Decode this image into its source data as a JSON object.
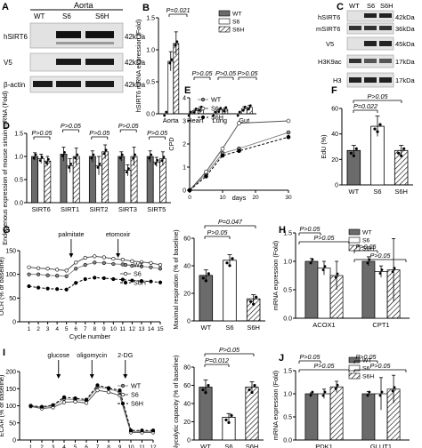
{
  "panels": {
    "A": {
      "letter": "A",
      "header": "Aorta",
      "lanes": [
        "WT",
        "S6",
        "S6H"
      ],
      "blots": [
        {
          "label": "hSIRT6",
          "kda": "42kDa"
        },
        {
          "label": "V5",
          "kda": "42kDa"
        },
        {
          "label": "β-actin",
          "kda": "42kDa"
        }
      ]
    },
    "C": {
      "letter": "C",
      "lanes": [
        "WT",
        "S6",
        "S6H"
      ],
      "blots": [
        {
          "label": "hSIRT6",
          "kda": "42kDa"
        },
        {
          "label": "mSIRT6",
          "kda": "36kDa"
        },
        {
          "label": "V5",
          "kda": "45kDa"
        },
        {
          "label": "H3K9ac",
          "kda": "17kDa"
        },
        {
          "label": "H3",
          "kda": "17kDa"
        }
      ]
    }
  },
  "colors": {
    "wt": "#6b6b6b",
    "s6": "#ffffff",
    "s6h": "#ffffff",
    "point": "#000000"
  },
  "chart_data": [
    {
      "id": "B",
      "letter": "B",
      "type": "bar",
      "ylabel": "hSIRT6 mRNA expression (Fold)",
      "ylim": [
        0,
        1.5
      ],
      "yticks": [
        0.0,
        0.5,
        1.0,
        1.5
      ],
      "categories": [
        "Aorta",
        "Heart",
        "Lung",
        "Gut"
      ],
      "series": [
        {
          "name": "WT",
          "values": [
            0.0,
            0.0,
            0.0,
            0.0
          ],
          "errors": [
            0,
            0,
            0,
            0
          ]
        },
        {
          "name": "S6",
          "values": [
            0.82,
            0.05,
            0.06,
            0.08
          ],
          "errors": [
            0.15,
            0.02,
            0.02,
            0.03
          ]
        },
        {
          "name": "S6H",
          "values": [
            1.1,
            0.08,
            0.07,
            0.1
          ],
          "errors": [
            0.18,
            0.03,
            0.02,
            0.03
          ]
        }
      ],
      "annotations": [
        "P=0.021",
        "P>0.05",
        "P>0.05",
        "P>0.05"
      ],
      "legend": "top-right"
    },
    {
      "id": "D",
      "letter": "D",
      "type": "bar",
      "ylabel": "Endogenous expression of mouse sirtuin mRNA (Fold)",
      "ylim": [
        0,
        1.5
      ],
      "yticks": [
        0.0,
        0.5,
        1.0,
        1.5
      ],
      "categories": [
        "SIRT6",
        "SIRT1",
        "SIRT2",
        "SIRT3",
        "SIRT5"
      ],
      "series": [
        {
          "name": "WT",
          "values": [
            1.0,
            1.05,
            1.0,
            1.0,
            1.0
          ],
          "errors": [
            0.08,
            0.15,
            0.12,
            0.1,
            0.12
          ]
        },
        {
          "name": "S6",
          "values": [
            0.95,
            0.8,
            0.8,
            0.7,
            0.88
          ],
          "errors": [
            0.1,
            0.15,
            0.2,
            0.12,
            0.1
          ]
        },
        {
          "name": "S6H",
          "values": [
            0.9,
            1.0,
            1.1,
            1.0,
            0.95
          ],
          "errors": [
            0.1,
            0.18,
            0.15,
            0.2,
            0.15
          ]
        }
      ],
      "annotations": [
        "P>0.05",
        "P>0.05",
        "P>0.05",
        "P>0.05",
        "P>0.05"
      ]
    },
    {
      "id": "E",
      "letter": "E",
      "type": "line",
      "ylabel": "CPD",
      "xlabel": "days",
      "xlim": [
        0,
        30
      ],
      "ylim": [
        0,
        4
      ],
      "xticks": [
        0,
        10,
        20,
        30
      ],
      "yticks": [
        0,
        1,
        2,
        3,
        4
      ],
      "series": [
        {
          "name": "WT",
          "x": [
            0,
            5,
            10,
            15,
            30
          ],
          "y": [
            0,
            0.7,
            1.6,
            1.8,
            2.5
          ]
        },
        {
          "name": "S6",
          "x": [
            0,
            5,
            10,
            15,
            30
          ],
          "y": [
            0,
            0.8,
            1.8,
            2.9,
            3.0
          ]
        },
        {
          "name": "S6H",
          "x": [
            0,
            5,
            10,
            15,
            30
          ],
          "y": [
            0,
            0.6,
            1.5,
            1.7,
            2.3
          ]
        }
      ],
      "legend": "top-left"
    },
    {
      "id": "F",
      "letter": "F",
      "type": "bar",
      "ylabel": "EdU (%)",
      "ylim": [
        0,
        60
      ],
      "yticks": [
        0,
        20,
        40,
        60
      ],
      "categories": [
        "WT",
        "S6",
        "S6H"
      ],
      "values": [
        27,
        46,
        27
      ],
      "errors": [
        4,
        8,
        4
      ],
      "annotations": [
        "P>0.05",
        "P=0.022"
      ]
    },
    {
      "id": "G",
      "letter": "G",
      "type": "line",
      "ylabel": "OCR (% of baseline)",
      "xlabel": "Cycle number",
      "xlim": [
        0,
        15
      ],
      "ylim": [
        0,
        150
      ],
      "xticks": [
        1,
        2,
        3,
        4,
        5,
        6,
        7,
        8,
        9,
        10,
        11,
        12,
        13,
        14,
        15
      ],
      "yticks": [
        0,
        50,
        100,
        150
      ],
      "series": [
        {
          "name": "WT",
          "x": [
            1,
            2,
            3,
            4,
            5,
            6,
            7,
            8,
            9,
            10,
            11,
            12,
            13,
            14,
            15
          ],
          "y": [
            100,
            100,
            98,
            97,
            96,
            112,
            120,
            125,
            124,
            122,
            121,
            118,
            117,
            115,
            112
          ]
        },
        {
          "name": "S6",
          "x": [
            1,
            2,
            3,
            4,
            5,
            6,
            7,
            8,
            9,
            10,
            11,
            12,
            13,
            14,
            15
          ],
          "y": [
            115,
            113,
            112,
            110,
            108,
            125,
            135,
            138,
            136,
            133,
            131,
            128,
            126,
            124,
            120
          ]
        },
        {
          "name": "S6H",
          "x": [
            1,
            2,
            3,
            4,
            5,
            6,
            7,
            8,
            9,
            10,
            11,
            12,
            13,
            14,
            15
          ],
          "y": [
            75,
            72,
            70,
            69,
            68,
            82,
            90,
            93,
            92,
            90,
            89,
            87,
            86,
            85,
            83
          ]
        }
      ],
      "event_labels": [
        {
          "text": "palmitate",
          "x": 5.5
        },
        {
          "text": "etomoxir",
          "x": 10.5
        }
      ],
      "legend": "right"
    },
    {
      "id": "G2",
      "type": "bar",
      "ylabel": "Maximal respiration (% of baseline)",
      "ylim": [
        0,
        60
      ],
      "yticks": [
        0,
        20,
        40,
        60
      ],
      "categories": [
        "WT",
        "S6",
        "S6H"
      ],
      "values": [
        33,
        44,
        16
      ],
      "errors": [
        4,
        4,
        3
      ],
      "annotations": [
        "P=0.047",
        "P>0.05"
      ]
    },
    {
      "id": "H",
      "letter": "H",
      "type": "bar",
      "ylabel": "mRNA expression (Fold)",
      "ylim": [
        0,
        1.5
      ],
      "yticks": [
        0.0,
        0.5,
        1.0,
        1.5
      ],
      "categories": [
        "ACOX1",
        "CPT1"
      ],
      "series": [
        {
          "name": "WT",
          "values": [
            1.0,
            1.0
          ],
          "errors": [
            0.05,
            0.08
          ]
        },
        {
          "name": "S6",
          "values": [
            0.88,
            0.82
          ],
          "errors": [
            0.12,
            0.1
          ]
        },
        {
          "name": "S6H",
          "values": [
            0.75,
            0.85
          ],
          "errors": [
            0.25,
            0.55
          ]
        }
      ],
      "annotations": [
        "P>0.05",
        "P>0.05",
        "P>0.05",
        "P>0.05"
      ],
      "legend": "top-right"
    },
    {
      "id": "I",
      "letter": "I",
      "type": "line",
      "ylabel": "ECAR (% of baseline)",
      "xlabel": "Cycle number",
      "xlim": [
        0,
        12
      ],
      "ylim": [
        0,
        200
      ],
      "xticks": [
        1,
        2,
        3,
        4,
        5,
        6,
        7,
        8,
        9,
        10,
        11,
        12
      ],
      "yticks": [
        0,
        50,
        100,
        150,
        200
      ],
      "series": [
        {
          "name": "WT",
          "x": [
            1,
            2,
            3,
            4,
            5,
            6,
            7,
            8,
            9,
            10,
            11,
            12
          ],
          "y": [
            100,
            95,
            100,
            120,
            118,
            115,
            155,
            150,
            140,
            25,
            25,
            25
          ]
        },
        {
          "name": "S6",
          "x": [
            1,
            2,
            3,
            4,
            5,
            6,
            7,
            8,
            9,
            10,
            11,
            12
          ],
          "y": [
            98,
            92,
            95,
            110,
            112,
            108,
            145,
            140,
            130,
            22,
            22,
            22
          ]
        },
        {
          "name": "S6H",
          "x": [
            1,
            2,
            3,
            4,
            5,
            6,
            7,
            8,
            9,
            10,
            11,
            12
          ],
          "y": [
            100,
            97,
            102,
            125,
            122,
            118,
            160,
            152,
            145,
            28,
            28,
            28
          ]
        }
      ],
      "event_labels": [
        {
          "text": "glucose",
          "x": 3.5
        },
        {
          "text": "oligomycin",
          "x": 6.5
        },
        {
          "text": "2-DG",
          "x": 9.5
        }
      ],
      "legend": "right"
    },
    {
      "id": "I2",
      "type": "bar",
      "ylabel": "Glycolytic capacity (% of baseline)",
      "ylim": [
        0,
        80
      ],
      "yticks": [
        0,
        20,
        40,
        60,
        80
      ],
      "categories": [
        "WT",
        "S6",
        "S6H"
      ],
      "values": [
        58,
        25,
        58
      ],
      "errors": [
        8,
        4,
        6
      ],
      "annotations": [
        "P>0.05",
        "P=0.012"
      ]
    },
    {
      "id": "J",
      "letter": "J",
      "type": "bar",
      "ylabel": "mRNA expression (Fold)",
      "ylim": [
        0,
        1.5
      ],
      "yticks": [
        0.0,
        0.5,
        1.0,
        1.5
      ],
      "categories": [
        "PDK1",
        "GLUT1"
      ],
      "series": [
        {
          "name": "WT",
          "values": [
            1.0,
            1.0
          ],
          "errors": [
            0.02,
            0.05
          ]
        },
        {
          "name": "S6",
          "values": [
            1.0,
            1.0
          ],
          "errors": [
            0.1,
            0.35
          ]
        },
        {
          "name": "S6H",
          "values": [
            1.15,
            1.1
          ],
          "errors": [
            0.12,
            0.3
          ]
        }
      ],
      "annotations": [
        "P>0.05",
        "P>0.05",
        "P>0.05",
        "P>0.05"
      ],
      "legend": "top-right"
    }
  ]
}
